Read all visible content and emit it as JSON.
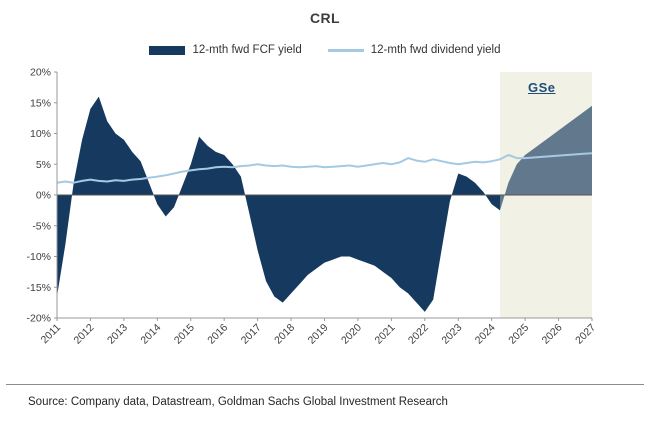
{
  "title": "CRL",
  "legend": [
    {
      "label": "12-mth fwd FCF yield",
      "color": "#16395f",
      "type": "area"
    },
    {
      "label": "12-mth fwd dividend yield",
      "color": "#a6c9e2",
      "type": "line"
    }
  ],
  "forecast_label": "GSe",
  "source": "Source: Company data, Datastream, Goldman Sachs Global Investment Research",
  "chart_data": {
    "type": "area",
    "title": "CRL",
    "xlabel": "",
    "ylabel": "",
    "x_range": [
      2011,
      2027
    ],
    "ylim": [
      -20,
      20
    ],
    "grid": false,
    "legend_position": "top",
    "forecast_start": 2024.25,
    "colors": {
      "area": "#16395f",
      "line": "#a6c9e2",
      "forecast_bg": "#f2f2e6",
      "zero_line": "#555555",
      "axis": "#999999"
    },
    "y_ticks": [
      {
        "value": 20,
        "label": "20%"
      },
      {
        "value": 15,
        "label": "15%"
      },
      {
        "value": 10,
        "label": "10%"
      },
      {
        "value": 5,
        "label": "5%"
      },
      {
        "value": 0,
        "label": "0%"
      },
      {
        "value": -5,
        "label": "-5%"
      },
      {
        "value": -10,
        "label": "-10%"
      },
      {
        "value": -15,
        "label": "-15%"
      },
      {
        "value": -20,
        "label": "-20%"
      }
    ],
    "x_ticks": [
      2011,
      2012,
      2013,
      2014,
      2015,
      2016,
      2017,
      2018,
      2019,
      2020,
      2021,
      2022,
      2023,
      2024,
      2025,
      2026,
      2027
    ],
    "x": [
      2011,
      2011.25,
      2011.5,
      2011.75,
      2012,
      2012.25,
      2012.5,
      2012.75,
      2013,
      2013.25,
      2013.5,
      2013.75,
      2014,
      2014.25,
      2014.5,
      2014.75,
      2015,
      2015.25,
      2015.5,
      2015.75,
      2016,
      2016.25,
      2016.5,
      2016.75,
      2017,
      2017.25,
      2017.5,
      2017.75,
      2018,
      2018.25,
      2018.5,
      2018.75,
      2019,
      2019.25,
      2019.5,
      2019.75,
      2020,
      2020.25,
      2020.5,
      2020.75,
      2021,
      2021.25,
      2021.5,
      2021.75,
      2022,
      2022.25,
      2022.5,
      2022.75,
      2023,
      2023.25,
      2023.5,
      2023.75,
      2024,
      2024.25,
      2024.5,
      2024.75,
      2025,
      2025.25,
      2025.5,
      2025.75,
      2026,
      2026.25,
      2026.5,
      2026.75,
      2027
    ],
    "series": [
      {
        "name": "12-mth fwd FCF yield",
        "type": "area",
        "color": "#16395f",
        "values": [
          -16.5,
          -8,
          2,
          9,
          14,
          16,
          12,
          10,
          9,
          7,
          5.5,
          2,
          -1.5,
          -3.5,
          -2,
          1.5,
          5,
          9.5,
          8,
          7,
          6.5,
          5,
          3,
          -3,
          -9,
          -14,
          -16.5,
          -17.5,
          -16,
          -14.5,
          -13,
          -12,
          -11,
          -10.5,
          -10,
          -10,
          -10.5,
          -11,
          -11.5,
          -12.5,
          -13.5,
          -15,
          -16,
          -17.5,
          -19,
          -17,
          -9,
          -1,
          3.5,
          3,
          2,
          0.5,
          -1.5,
          -2.5,
          2,
          5,
          6.5,
          7.5,
          8.5,
          9.5,
          10.5,
          11.5,
          12.5,
          13.5,
          14.5
        ]
      },
      {
        "name": "12-mth fwd dividend yield",
        "type": "line",
        "color": "#a6c9e2",
        "values": [
          2,
          2.2,
          2,
          2.3,
          2.5,
          2.3,
          2.2,
          2.4,
          2.3,
          2.5,
          2.6,
          2.8,
          3,
          3.2,
          3.5,
          3.8,
          4,
          4.2,
          4.3,
          4.5,
          4.6,
          4.5,
          4.7,
          4.8,
          5,
          4.8,
          4.7,
          4.8,
          4.6,
          4.5,
          4.6,
          4.7,
          4.5,
          4.6,
          4.7,
          4.8,
          4.6,
          4.8,
          5,
          5.2,
          5,
          5.3,
          6,
          5.6,
          5.4,
          5.8,
          5.5,
          5.2,
          5,
          5.2,
          5.4,
          5.3,
          5.5,
          5.8,
          6.5,
          6,
          6,
          6.1,
          6.2,
          6.3,
          6.4,
          6.5,
          6.6,
          6.7,
          6.8
        ]
      }
    ],
    "annotations": [
      {
        "text": "GSe",
        "region": "forecast"
      }
    ]
  }
}
